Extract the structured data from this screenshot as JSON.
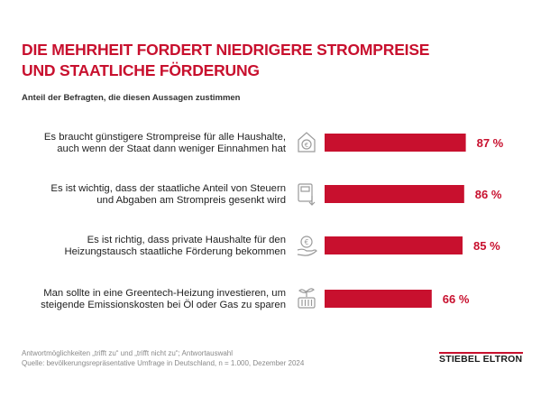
{
  "title": {
    "line1": "DIE MEHRHEIT FORDERT NIEDRIGERE STROMPREISE",
    "line2": "UND STAATLICHE FÖRDERUNG"
  },
  "subtitle": "Anteil der Befragten, die diesen Aussagen zustimmen",
  "colors": {
    "accent": "#c8102e",
    "bar": "#c8102e",
    "label_text": "#222222",
    "icon": "#9a9a9a"
  },
  "chart_data": {
    "type": "bar",
    "orientation": "horizontal",
    "title": "DIE MEHRHEIT FORDERT NIEDRIGERE STROMPREISE UND STAATLICHE FÖRDERUNG",
    "subtitle": "Anteil der Befragten, die diesen Aussagen zustimmen",
    "unit": "%",
    "xlim": [
      0,
      100
    ],
    "grid": false,
    "categories": [
      [
        "Es braucht günstigere Strompreise für alle Haushalte,",
        "auch wenn der Staat dann weniger Einnahmen hat"
      ],
      [
        "Es ist wichtig, dass der staatliche Anteil von Steuern",
        "und Abgaben am Strompreis gesenkt wird"
      ],
      [
        "Es ist richtig, dass private Haushalte für den",
        "Heizungstausch staatliche Förderung bekommen"
      ],
      [
        "Man sollte in eine Greentech-Heizung investieren, um",
        "steigende Emissionskosten bei Öl oder Gas zu sparen"
      ]
    ],
    "values": [
      87,
      86,
      85,
      66
    ],
    "value_labels": [
      "87 %",
      "86 %",
      "85 %",
      "66 %"
    ],
    "icons": [
      "house-euro-icon",
      "meter-down-icon",
      "hand-euro-icon",
      "plant-radiator-icon"
    ]
  },
  "footnote": {
    "line1": "Antwortmöglichkeiten „trifft zu“ und „trifft nicht zu“; Antwortauswahl",
    "line2": "Quelle: bevölkerungsrepräsentative Umfrage in Deutschland, n = 1.000, Dezember 2024"
  },
  "logo": "STIEBEL ELTRON"
}
